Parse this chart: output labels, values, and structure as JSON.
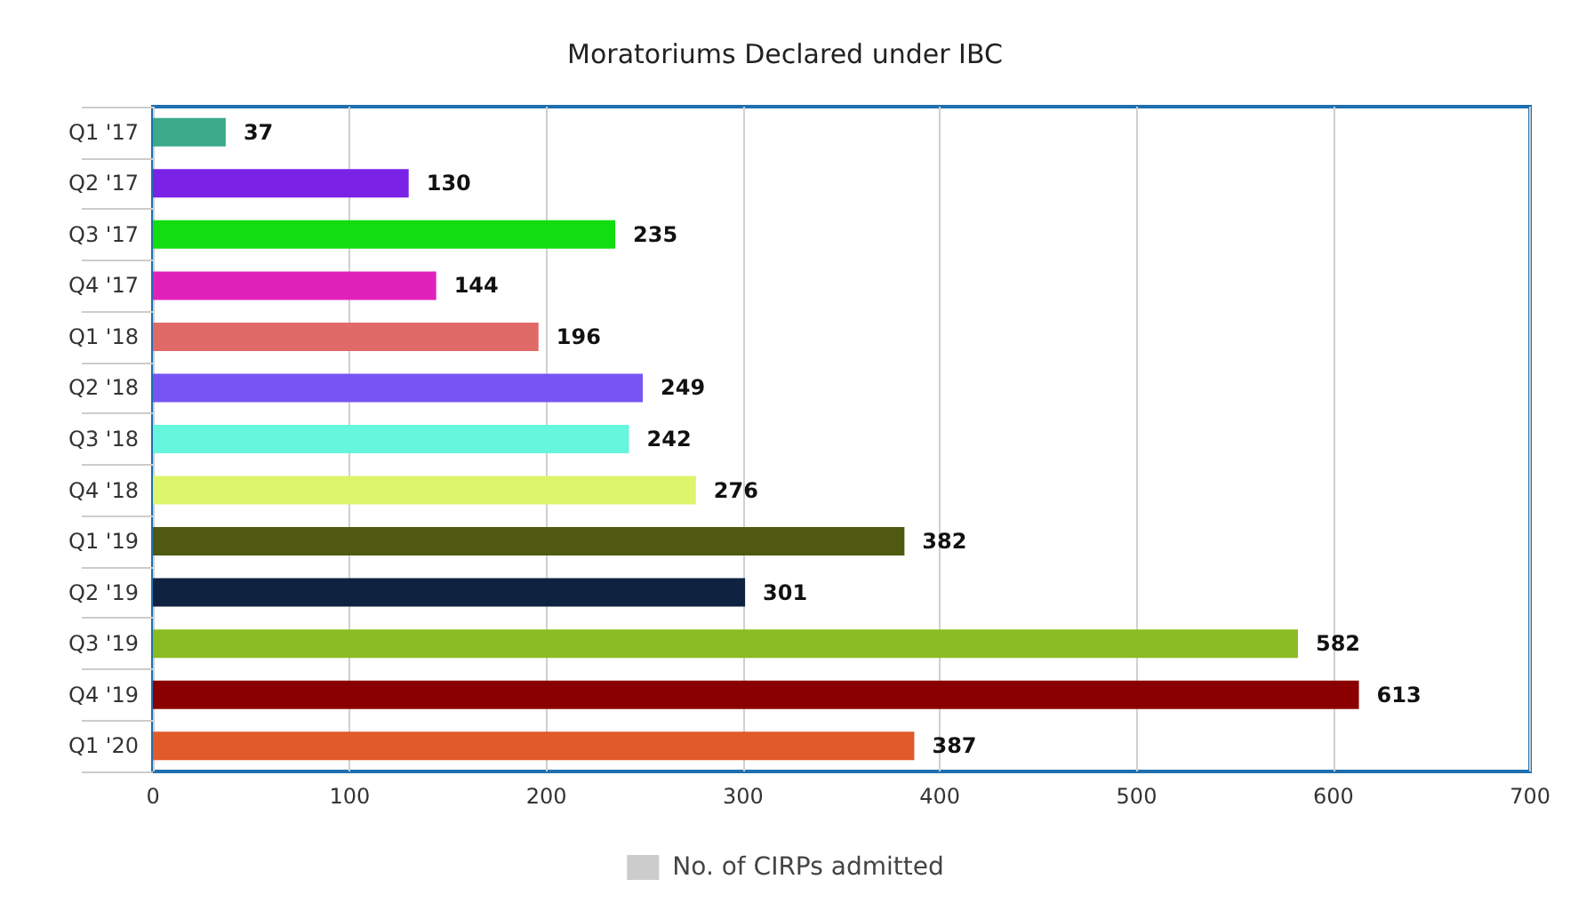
{
  "chart_data": {
    "type": "bar",
    "orientation": "horizontal",
    "title": "Moratoriums Declared under IBC",
    "categories": [
      "Q1 '17",
      "Q2 '17",
      "Q3 '17",
      "Q4 '17",
      "Q1 '18",
      "Q2 '18",
      "Q3 '18",
      "Q4 '18",
      "Q1 '19",
      "Q2 '19",
      "Q3 '19",
      "Q4 '19",
      "Q1 '20"
    ],
    "series": [
      {
        "name": "No. of CIRPs admitted",
        "color": "#cccccc",
        "values": [
          37,
          130,
          235,
          144,
          196,
          249,
          242,
          276,
          382,
          301,
          582,
          613,
          387
        ],
        "colors": [
          "#3aaa8a",
          "#7a22e6",
          "#11dd11",
          "#e022bb",
          "#e06a68",
          "#7755f2",
          "#66f5dd",
          "#ddf56a",
          "#4f5a10",
          "#0f2240",
          "#8abb22",
          "#8a0000",
          "#e05a2a"
        ]
      }
    ],
    "xlim": [
      0,
      700
    ],
    "xticks": [
      0,
      100,
      200,
      300,
      400,
      500,
      600,
      700
    ],
    "grid": "x",
    "legend": "bottom",
    "data_labels": true
  }
}
